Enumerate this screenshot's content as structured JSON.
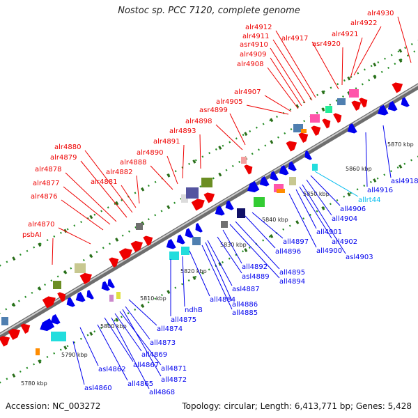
{
  "title": "Nostoc sp. PCC 7120, complete genome",
  "footer": {
    "accession": "Accession: NC_003272",
    "stats": "Topology: circular; Length: 6,413,771 bp; Genes: 5,428"
  },
  "colors": {
    "forward": "#ee0000",
    "reverse": "#0000ee",
    "rna": "#00bbee",
    "dots": "#228b22"
  },
  "scale": [
    "5780 kbp",
    "5790 kbp",
    "5800 kbp",
    "5810 kbp",
    "5820 kbp",
    "5830 kbp",
    "5840 kbp",
    "5850 kbp",
    "5860 kbp",
    "5870 kbp"
  ],
  "forward_labels": [
    "psbAI",
    "alr4870",
    "alr4876",
    "alr4877",
    "alr4878",
    "alr4879",
    "alr4880",
    "alr4881",
    "alr4882",
    "alr4888",
    "alr4890",
    "alr4891",
    "alr4893",
    "alr4898",
    "asr4899",
    "alr4905",
    "alr4907",
    "alr4908",
    "alr4909",
    "asr4910",
    "alr4911",
    "alr4912",
    "alr4917",
    "asr4920",
    "alr4921",
    "alr4922",
    "alr4930"
  ],
  "reverse_labels": [
    "asl4860",
    "asl4862",
    "all4865",
    "all4867",
    "all4868",
    "all4869",
    "all4871",
    "all4872",
    "all4873",
    "all4874",
    "all4875",
    "ndhB",
    "all4884",
    "all4885",
    "all4886",
    "asl4887",
    "asl4889",
    "all4892",
    "all4894",
    "all4895",
    "all4896",
    "all4897",
    "all4900",
    "all4901",
    "all4902",
    "asl4903",
    "all4904",
    "all4906",
    "allrt44",
    "all4916",
    "asl4918"
  ]
}
